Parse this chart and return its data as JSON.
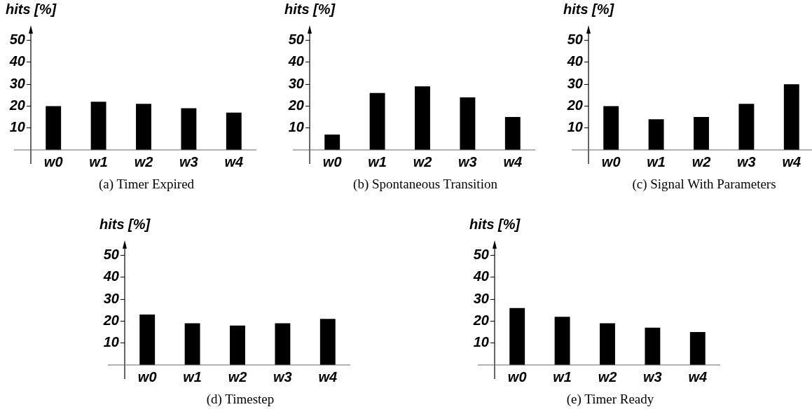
{
  "chart_data": [
    {
      "type": "bar",
      "title": "(a) Timer Expired",
      "ylabel": "hits [%]",
      "categories": [
        "w0",
        "w1",
        "w2",
        "w3",
        "w4"
      ],
      "values": [
        20,
        22,
        21,
        19,
        17
      ],
      "color": "#000000",
      "ylim": [
        0,
        55
      ],
      "yticks": [
        10,
        20,
        30,
        40,
        50
      ],
      "grid": false,
      "legend": false
    },
    {
      "type": "bar",
      "title": "(b) Spontaneous Transition",
      "ylabel": "hits [%]",
      "categories": [
        "w0",
        "w1",
        "w2",
        "w3",
        "w4"
      ],
      "values": [
        7,
        26,
        29,
        24,
        15
      ],
      "color": "#000000",
      "ylim": [
        0,
        55
      ],
      "yticks": [
        10,
        20,
        30,
        40,
        50
      ],
      "grid": false,
      "legend": false
    },
    {
      "type": "bar",
      "title": "(c) Signal With Parameters",
      "ylabel": "hits [%]",
      "categories": [
        "w0",
        "w1",
        "w2",
        "w3",
        "w4"
      ],
      "values": [
        20,
        14,
        15,
        21,
        30
      ],
      "color": "#000000",
      "ylim": [
        0,
        55
      ],
      "yticks": [
        10,
        20,
        30,
        40,
        50
      ],
      "grid": false,
      "legend": false
    },
    {
      "type": "bar",
      "title": "(d) Timestep",
      "ylabel": "hits [%]",
      "categories": [
        "w0",
        "w1",
        "w2",
        "w3",
        "w4"
      ],
      "values": [
        23,
        19,
        18,
        19,
        21
      ],
      "color": "#000000",
      "ylim": [
        0,
        55
      ],
      "yticks": [
        10,
        20,
        30,
        40,
        50
      ],
      "grid": false,
      "legend": false
    },
    {
      "type": "bar",
      "title": "(e) Timer Ready",
      "ylabel": "hits [%]",
      "categories": [
        "w0",
        "w1",
        "w2",
        "w3",
        "w4"
      ],
      "values": [
        26,
        22,
        19,
        17,
        15
      ],
      "color": "#000000",
      "ylim": [
        0,
        55
      ],
      "yticks": [
        10,
        20,
        30,
        40,
        50
      ],
      "grid": false,
      "legend": false
    }
  ]
}
